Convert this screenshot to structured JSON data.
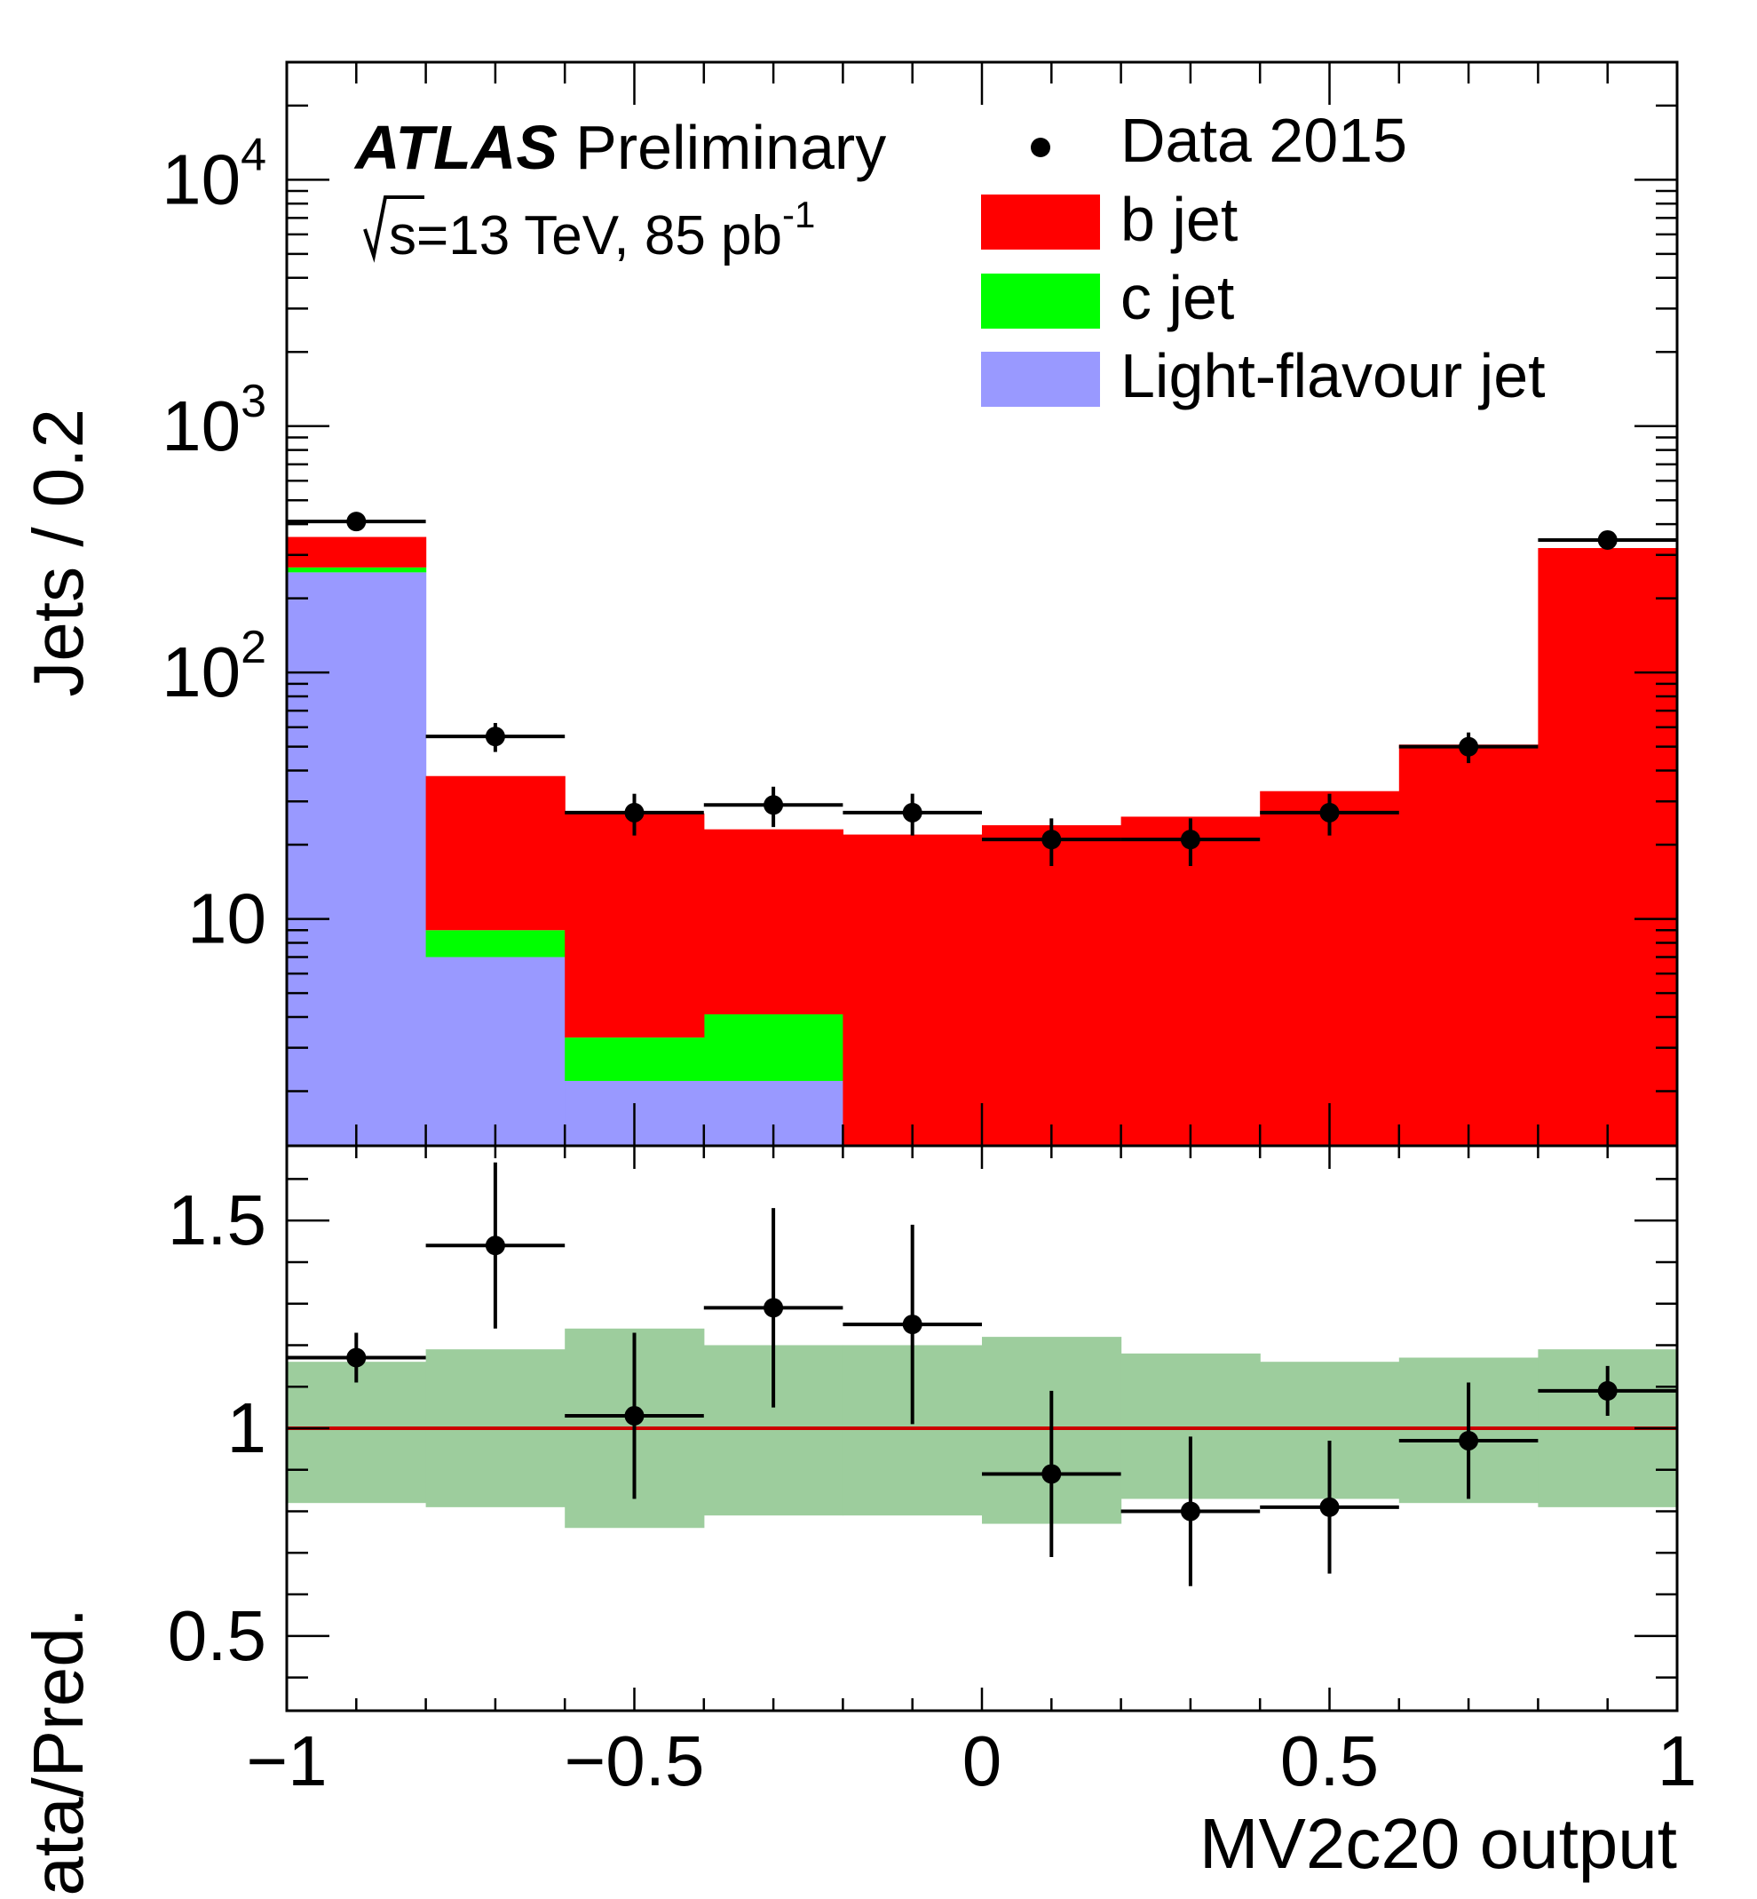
{
  "chart_data": {
    "type": "bar",
    "subtype": "stacked-histogram-with-ratio",
    "x_bins": [
      -1.0,
      -0.8,
      -0.6,
      -0.4,
      -0.2,
      0.0,
      0.2,
      0.4,
      0.6,
      0.8,
      1.0
    ],
    "xlim": [
      -1,
      1
    ],
    "xlabel": "MV2c20 output",
    "x_ticks": [
      -1,
      -0.5,
      0,
      0.5,
      1
    ],
    "x_tick_labels": [
      "−1",
      "−0.5",
      "0",
      "0.5",
      "1"
    ],
    "main_panel": {
      "ylabel": "Jets / 0.2",
      "yscale": "log",
      "ylim": [
        1.2,
        30000
      ],
      "y_ticks": [
        10,
        100,
        1000,
        10000
      ],
      "y_tick_labels": [
        {
          "base": "10",
          "exp": ""
        },
        {
          "base": "10",
          "exp": "2"
        },
        {
          "base": "10",
          "exp": "3"
        },
        {
          "base": "10",
          "exp": "4"
        }
      ],
      "stack": [
        {
          "name": "Light-flavour jet",
          "color": "#9999ff",
          "values": [
            255,
            7,
            2.2,
            2.2,
            0,
            0,
            0,
            0,
            0,
            0
          ]
        },
        {
          "name": "c jet",
          "color": "#00ff00",
          "values": [
            12,
            2,
            1.1,
            1.9,
            0,
            0,
            0,
            0,
            0,
            0
          ]
        },
        {
          "name": "b jet",
          "color": "#ff0000",
          "values": [
            88,
            29,
            23.5,
            19,
            22,
            24,
            26,
            33,
            51,
            320
          ]
        }
      ],
      "data": {
        "name": "Data 2015",
        "x": [
          -0.9,
          -0.7,
          -0.5,
          -0.3,
          -0.1,
          0.1,
          0.3,
          0.5,
          0.7,
          0.9
        ],
        "y": [
          410,
          55,
          27,
          29,
          27,
          21,
          21,
          27,
          50,
          345
        ],
        "yerr": [
          20,
          7.4,
          5.2,
          5.4,
          5.2,
          4.6,
          4.6,
          5.2,
          7.1,
          18.6
        ]
      }
    },
    "ratio_panel": {
      "ylabel": "Data/Pred.",
      "ylim": [
        0.32,
        1.68
      ],
      "y_ticks": [
        0.5,
        1,
        1.5
      ],
      "y_tick_labels": [
        "0.5",
        "1",
        "1.5"
      ],
      "reference_line": 1,
      "reference_color": "#cc0000",
      "band_color": "#9dcd9d",
      "band_low": [
        0.82,
        0.81,
        0.76,
        0.79,
        0.79,
        0.77,
        0.83,
        0.83,
        0.82,
        0.81
      ],
      "band_high": [
        1.16,
        1.19,
        1.24,
        1.2,
        1.2,
        1.22,
        1.18,
        1.16,
        1.17,
        1.19
      ],
      "ratio": [
        1.17,
        1.44,
        1.03,
        1.29,
        1.25,
        0.89,
        0.8,
        0.81,
        0.97,
        1.09
      ],
      "ratio_err": [
        0.06,
        0.2,
        0.2,
        0.24,
        0.24,
        0.2,
        0.18,
        0.16,
        0.14,
        0.06
      ]
    },
    "annotations": {
      "experiment": "ATLAS",
      "status": "Preliminary",
      "energy": "s=13 TeV, 85 pb",
      "lumi_exp": "-1"
    },
    "legend": {
      "placement": "top-right",
      "entries": [
        "Data 2015",
        "b jet",
        "c jet",
        "Light-flavour jet"
      ]
    }
  }
}
